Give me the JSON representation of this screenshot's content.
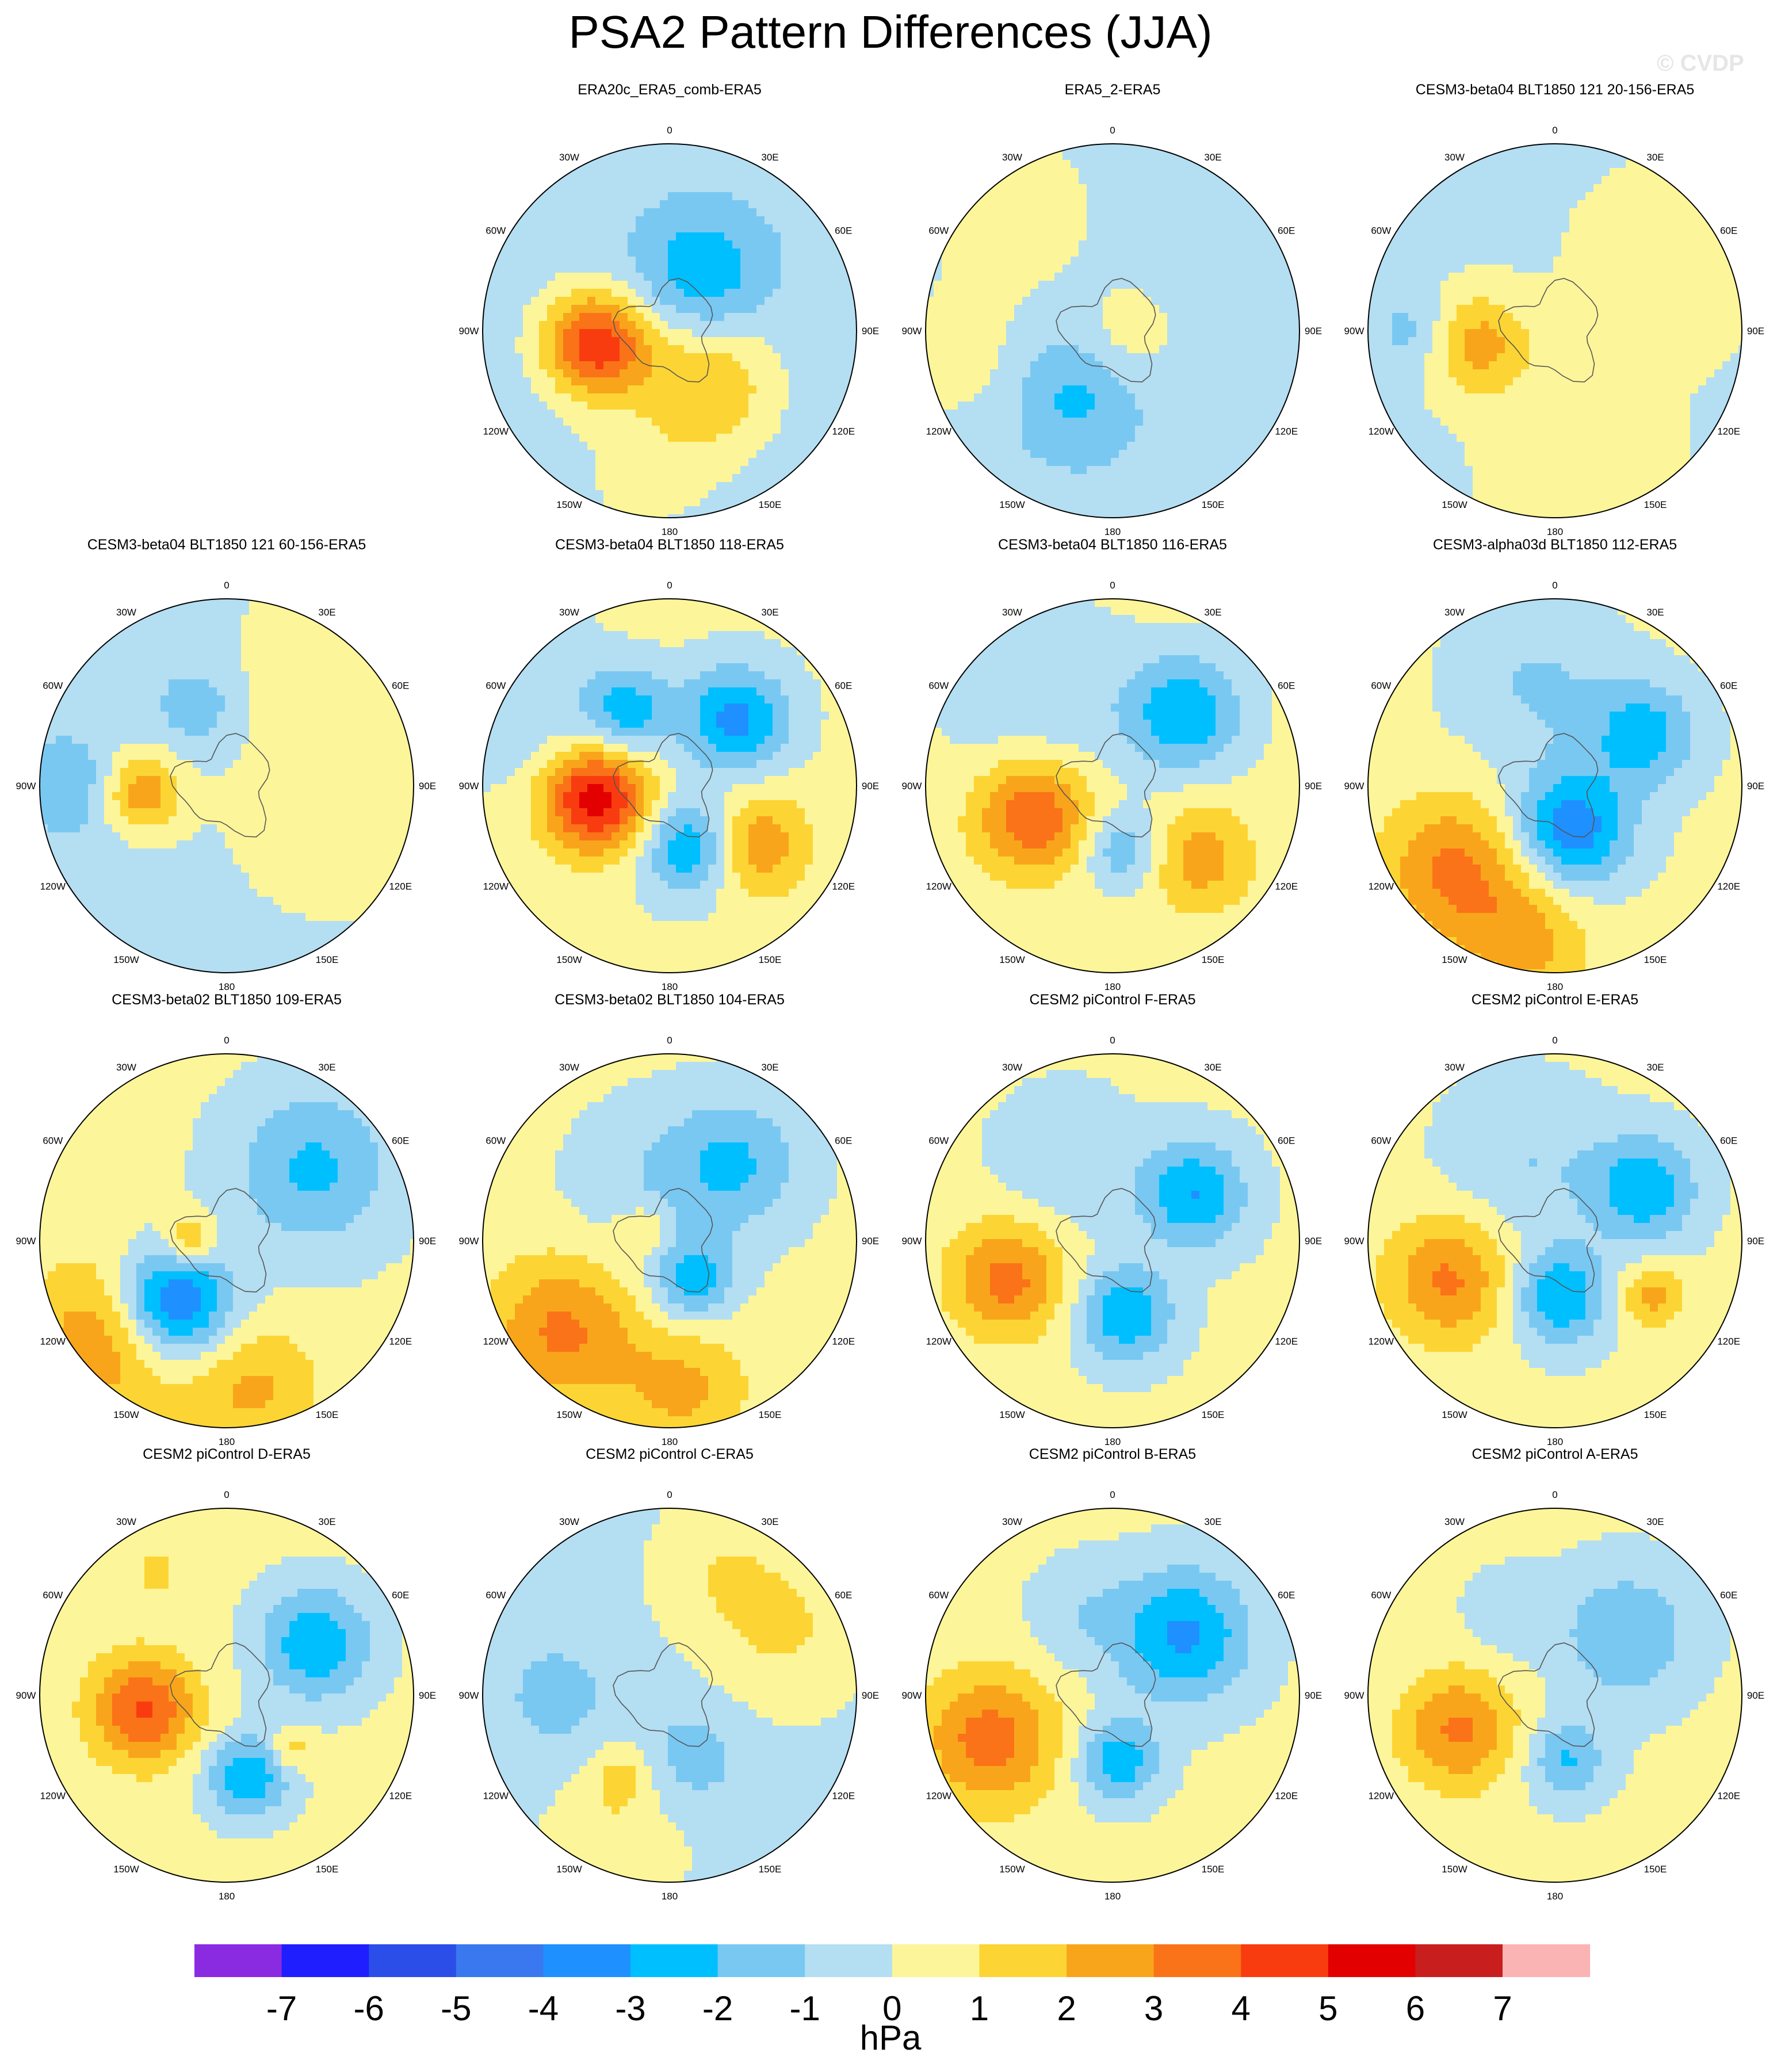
{
  "title": "PSA2 Pattern Differences (JJA)",
  "watermark": "© CVDP",
  "units": "hPa",
  "longitude_labels": [
    "0",
    "30E",
    "60E",
    "90E",
    "120E",
    "150E",
    "180",
    "150W",
    "120W",
    "90W",
    "60W",
    "30W"
  ],
  "colors": {
    "background": "#ffffff",
    "continent_outline": "#555555"
  },
  "chart_data": {
    "type": "polar-stereographic contour maps",
    "levels": [
      -7,
      -6,
      -5,
      -4,
      -3,
      -2,
      -1,
      0,
      1,
      2,
      3,
      4,
      5,
      6,
      7
    ],
    "colormap": [
      "#8a2be2",
      "#1e1eff",
      "#2b4de8",
      "#3a78ef",
      "#1e90ff",
      "#00bfff",
      "#79c8f2",
      "#b4def2",
      "#fdf59a",
      "#fcd534",
      "#f9a51b",
      "#fa7318",
      "#f93c10",
      "#e20000",
      "#c81e1e",
      "#fbb4b4"
    ],
    "panels": [
      {
        "title": "ERA20c_ERA5_comb-ERA5",
        "row": 0,
        "col": 1,
        "base": -0.6,
        "blobs": [
          {
            "lon": -100,
            "lat": 0.4,
            "amp": 5.2,
            "r": 0.2
          },
          {
            "lon": 30,
            "lat": 0.35,
            "amp": -2.3,
            "r": 0.24
          },
          {
            "lon": 145,
            "lat": 0.35,
            "amp": 2.5,
            "r": 0.26
          },
          {
            "lon": -170,
            "lat": 0.8,
            "amp": 0.8,
            "r": 0.3
          }
        ]
      },
      {
        "title": "ERA5_2-ERA5",
        "row": 0,
        "col": 2,
        "base": -0.7,
        "blobs": [
          {
            "lon": -150,
            "lat": 0.4,
            "amp": -1.6,
            "r": 0.22
          },
          {
            "lon": -40,
            "lat": 0.85,
            "amp": 1.4,
            "r": 0.35
          },
          {
            "lon": 100,
            "lat": 0.1,
            "amp": 1.2,
            "r": 0.2
          },
          {
            "lon": -100,
            "lat": 0.85,
            "amp": 1.2,
            "r": 0.25
          }
        ]
      },
      {
        "title": "CESM3-beta04 BLT1850 121 20-156-ERA5",
        "row": 0,
        "col": 3,
        "base": -0.3,
        "blobs": [
          {
            "lon": -100,
            "lat": 0.42,
            "amp": 2.7,
            "r": 0.2
          },
          {
            "lon": 60,
            "lat": 0.7,
            "amp": 1.2,
            "r": 0.35
          },
          {
            "lon": 170,
            "lat": 0.75,
            "amp": 1.2,
            "r": 0.35
          },
          {
            "lon": -90,
            "lat": 0.75,
            "amp": -1.3,
            "r": 0.15
          }
        ]
      },
      {
        "title": "CESM3-beta04 BLT1850 121 60-156-ERA5",
        "row": 1,
        "col": 0,
        "base": -0.5,
        "blobs": [
          {
            "lon": -95,
            "lat": 0.45,
            "amp": 3.1,
            "r": 0.15
          },
          {
            "lon": -90,
            "lat": 0.85,
            "amp": -1.4,
            "r": 0.18
          },
          {
            "lon": -20,
            "lat": 0.45,
            "amp": -1.3,
            "r": 0.15
          },
          {
            "lon": 100,
            "lat": 0.6,
            "amp": 1.3,
            "r": 0.45
          },
          {
            "lon": 30,
            "lat": 0.9,
            "amp": 1.0,
            "r": 0.3
          }
        ]
      },
      {
        "title": "CESM3-beta04 BLT1850 118-ERA5",
        "row": 1,
        "col": 1,
        "base": 0.2,
        "blobs": [
          {
            "lon": -100,
            "lat": 0.4,
            "amp": 5.5,
            "r": 0.2
          },
          {
            "lon": -30,
            "lat": 0.45,
            "amp": -2.8,
            "r": 0.16
          },
          {
            "lon": 45,
            "lat": 0.5,
            "amp": -3.5,
            "r": 0.2
          },
          {
            "lon": 160,
            "lat": 0.35,
            "amp": -3.5,
            "r": 0.18
          },
          {
            "lon": 125,
            "lat": 0.55,
            "amp": 2.8,
            "r": 0.2
          },
          {
            "lon": -60,
            "lat": 0.9,
            "amp": -1.2,
            "r": 0.3
          }
        ]
      },
      {
        "title": "CESM3-beta04 BLT1850 116-ERA5",
        "row": 1,
        "col": 2,
        "base": 0.3,
        "blobs": [
          {
            "lon": -110,
            "lat": 0.45,
            "amp": 3.8,
            "r": 0.22
          },
          {
            "lon": 45,
            "lat": 0.55,
            "amp": -3.1,
            "r": 0.22
          },
          {
            "lon": 170,
            "lat": 0.35,
            "amp": -2.3,
            "r": 0.15
          },
          {
            "lon": 130,
            "lat": 0.6,
            "amp": 2.3,
            "r": 0.2
          },
          {
            "lon": -40,
            "lat": 0.6,
            "amp": -1.2,
            "r": 0.35
          }
        ]
      },
      {
        "title": "CESM3-alpha03d BLT1850 112-ERA5",
        "row": 1,
        "col": 3,
        "base": 0.2,
        "blobs": [
          {
            "lon": -130,
            "lat": 0.7,
            "amp": 3.0,
            "r": 0.28
          },
          {
            "lon": 160,
            "lat": 0.25,
            "amp": -4.0,
            "r": 0.22
          },
          {
            "lon": 60,
            "lat": 0.55,
            "amp": -2.7,
            "r": 0.2
          },
          {
            "lon": -10,
            "lat": 0.55,
            "amp": -1.3,
            "r": 0.3
          },
          {
            "lon": -170,
            "lat": 0.85,
            "amp": 2.0,
            "r": 0.25
          }
        ]
      },
      {
        "title": "CESM3-beta02 BLT1850 109-ERA5",
        "row": 2,
        "col": 0,
        "base": 0.2,
        "blobs": [
          {
            "lon": -140,
            "lat": 0.45,
            "amp": -5.2,
            "r": 0.22
          },
          {
            "lon": -130,
            "lat": 0.8,
            "amp": 3.0,
            "r": 0.3
          },
          {
            "lon": 170,
            "lat": 0.8,
            "amp": 2.0,
            "r": 0.25
          },
          {
            "lon": 50,
            "lat": 0.6,
            "amp": -2.4,
            "r": 0.3
          },
          {
            "lon": -90,
            "lat": 0.2,
            "amp": 2.3,
            "r": 0.1
          }
        ]
      },
      {
        "title": "CESM3-beta02 BLT1850 104-ERA5",
        "row": 2,
        "col": 1,
        "base": 0.2,
        "blobs": [
          {
            "lon": -130,
            "lat": 0.75,
            "amp": 3.0,
            "r": 0.28
          },
          {
            "lon": 175,
            "lat": 0.8,
            "amp": 2.0,
            "r": 0.25
          },
          {
            "lon": 150,
            "lat": 0.25,
            "amp": -2.8,
            "r": 0.15
          },
          {
            "lon": 40,
            "lat": 0.55,
            "amp": -2.2,
            "r": 0.25
          },
          {
            "lon": -70,
            "lat": 0.15,
            "amp": 1.5,
            "r": 0.1
          },
          {
            "lon": -20,
            "lat": 0.3,
            "amp": -1.0,
            "r": 0.3
          }
        ]
      },
      {
        "title": "CESM2 piControl F-ERA5",
        "row": 2,
        "col": 2,
        "base": 0.2,
        "blobs": [
          {
            "lon": -110,
            "lat": 0.6,
            "amp": 3.2,
            "r": 0.22
          },
          {
            "lon": 170,
            "lat": 0.4,
            "amp": -3.1,
            "r": 0.18
          },
          {
            "lon": 60,
            "lat": 0.5,
            "amp": -3.2,
            "r": 0.2
          },
          {
            "lon": -30,
            "lat": 0.5,
            "amp": -1.2,
            "r": 0.25
          }
        ]
      },
      {
        "title": "CESM2 piControl E-ERA5",
        "row": 2,
        "col": 3,
        "base": 0.2,
        "blobs": [
          {
            "lon": -110,
            "lat": 0.6,
            "amp": 3.0,
            "r": 0.24
          },
          {
            "lon": 175,
            "lat": 0.3,
            "amp": -3.2,
            "r": 0.18
          },
          {
            "lon": 60,
            "lat": 0.55,
            "amp": -3.0,
            "r": 0.2
          },
          {
            "lon": 120,
            "lat": 0.6,
            "amp": 2.2,
            "r": 0.12
          },
          {
            "lon": -20,
            "lat": 0.45,
            "amp": -1.2,
            "r": 0.3
          }
        ]
      },
      {
        "title": "CESM2 piControl D-ERA5",
        "row": 3,
        "col": 0,
        "base": 0.3,
        "blobs": [
          {
            "lon": -100,
            "lat": 0.45,
            "amp": 3.8,
            "r": 0.2
          },
          {
            "lon": 165,
            "lat": 0.45,
            "amp": -3.1,
            "r": 0.16
          },
          {
            "lon": 60,
            "lat": 0.55,
            "amp": -3.1,
            "r": 0.22
          },
          {
            "lon": 130,
            "lat": 0.45,
            "amp": 1.6,
            "r": 0.08
          },
          {
            "lon": -30,
            "lat": 0.75,
            "amp": 1.0,
            "r": 0.1
          }
        ]
      },
      {
        "title": "CESM2 piControl C-ERA5",
        "row": 3,
        "col": 1,
        "base": -0.3,
        "blobs": [
          {
            "lon": -150,
            "lat": 0.5,
            "amp": 1.5,
            "r": 0.12
          },
          {
            "lon": 160,
            "lat": 0.35,
            "amp": -1.2,
            "r": 0.2
          },
          {
            "lon": 60,
            "lat": 0.7,
            "amp": 1.4,
            "r": 0.3
          },
          {
            "lon": -90,
            "lat": 0.6,
            "amp": -1.2,
            "r": 0.2
          },
          {
            "lon": -160,
            "lat": 0.85,
            "amp": 1.2,
            "r": 0.25
          },
          {
            "lon": 20,
            "lat": 0.75,
            "amp": 1.0,
            "r": 0.25
          }
        ]
      },
      {
        "title": "CESM2 piControl B-ERA5",
        "row": 3,
        "col": 2,
        "base": 0.2,
        "blobs": [
          {
            "lon": -110,
            "lat": 0.7,
            "amp": 3.3,
            "r": 0.26
          },
          {
            "lon": 175,
            "lat": 0.35,
            "amp": -3.0,
            "r": 0.15
          },
          {
            "lon": 50,
            "lat": 0.5,
            "amp": -3.4,
            "r": 0.25
          },
          {
            "lon": -20,
            "lat": 0.45,
            "amp": -1.0,
            "r": 0.2
          }
        ]
      },
      {
        "title": "CESM2 piControl A-ERA5",
        "row": 3,
        "col": 3,
        "base": 0.2,
        "blobs": [
          {
            "lon": -110,
            "lat": 0.55,
            "amp": 3.0,
            "r": 0.22
          },
          {
            "lon": 170,
            "lat": 0.35,
            "amp": -2.3,
            "r": 0.15
          },
          {
            "lon": 50,
            "lat": 0.5,
            "amp": -2.2,
            "r": 0.25
          },
          {
            "lon": -30,
            "lat": 0.5,
            "amp": -1.1,
            "r": 0.15
          }
        ]
      }
    ]
  }
}
